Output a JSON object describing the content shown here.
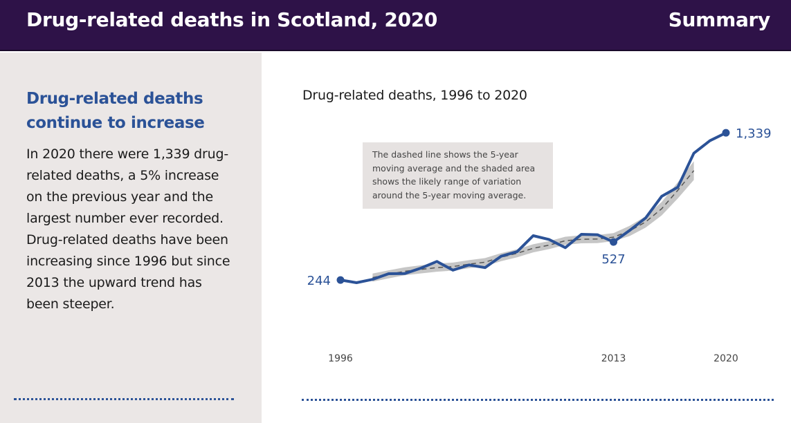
{
  "header": {
    "title": "Drug-related deaths in Scotland, 2020",
    "section": "Summary"
  },
  "sidebar": {
    "heading": "Drug-related deaths continue to increase",
    "body": "In 2020 there were 1,339 drug-related deaths, a 5% increase on the previous year and the largest number ever recorded. Drug-related deaths have been increasing since 1996 but since 2013 the upward trend has been steeper."
  },
  "note": "The dashed line shows the 5-year moving average and the shaded area shows the likely range of variation around the 5-year moving average.",
  "colors": {
    "header": "#2e1248",
    "accent": "#2b5297",
    "sidebar": "#ebe7e6",
    "band": "#bcbcbc",
    "dash": "#555555"
  },
  "chart_data": {
    "type": "line",
    "title": "Drug-related deaths, 1996 to 2020",
    "xlabel": "",
    "ylabel": "",
    "x": [
      1996,
      1997,
      1998,
      1999,
      2000,
      2001,
      2002,
      2003,
      2004,
      2005,
      2006,
      2007,
      2008,
      2009,
      2010,
      2011,
      2012,
      2013,
      2014,
      2015,
      2016,
      2017,
      2018,
      2019,
      2020
    ],
    "x_tick_labels": [
      "1996",
      "2013",
      "2020"
    ],
    "x_tick_values": [
      1996,
      2013,
      2020
    ],
    "ylim": [
      0,
      1400
    ],
    "series": [
      {
        "name": "Drug-related deaths",
        "values": [
          244,
          224,
          249,
          291,
          292,
          332,
          382,
          317,
          356,
          336,
          421,
          455,
          574,
          545,
          485,
          584,
          581,
          527,
          613,
          706,
          867,
          934,
          1187,
          1280,
          1339
        ]
      },
      {
        "name": "5-year moving average",
        "values": [
          null,
          null,
          262,
          286,
          309,
          323,
          336,
          344,
          362,
          377,
          414,
          443,
          480,
          504,
          536,
          547,
          549,
          563,
          609,
          676,
          775,
          911,
          1058,
          null,
          null
        ]
      }
    ],
    "band": {
      "name": "Likely range of variation",
      "lower": [
        null,
        null,
        232,
        256,
        279,
        293,
        306,
        314,
        332,
        347,
        384,
        413,
        450,
        474,
        506,
        517,
        519,
        533,
        571,
        634,
        725,
        851,
        988,
        null,
        null
      ],
      "upper": [
        null,
        null,
        292,
        316,
        339,
        353,
        366,
        374,
        392,
        407,
        444,
        473,
        510,
        534,
        566,
        577,
        579,
        593,
        647,
        718,
        825,
        971,
        1128,
        null,
        null
      ]
    },
    "annotations": [
      {
        "year": 1996,
        "label": "244"
      },
      {
        "year": 2013,
        "label": "527"
      },
      {
        "year": 2020,
        "label": "1,339"
      }
    ]
  }
}
